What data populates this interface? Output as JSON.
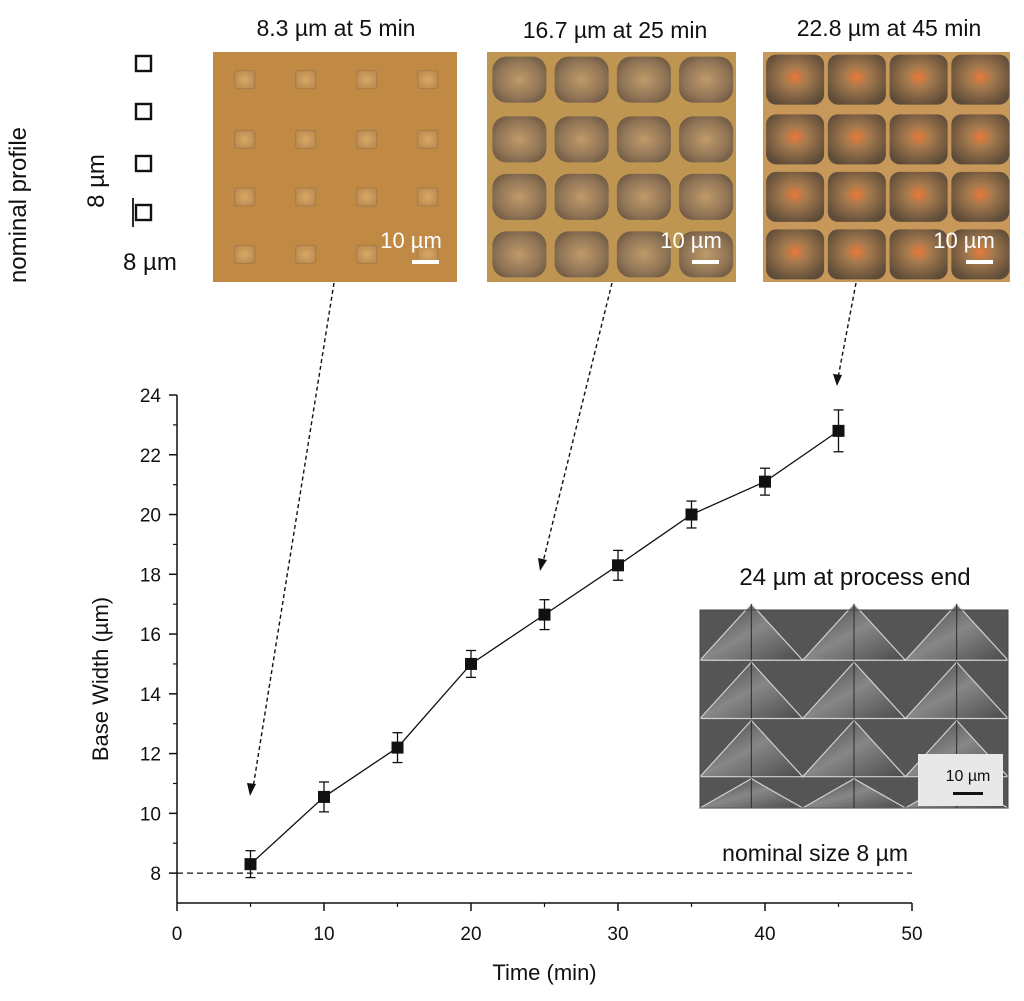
{
  "chart_data": {
    "type": "line",
    "title": "",
    "xlabel": "Time (min)",
    "ylabel": "Base Width (µm)",
    "xlim": [
      0,
      50
    ],
    "ylim": [
      7,
      24
    ],
    "xticks": [
      0,
      10,
      20,
      30,
      40,
      50
    ],
    "yticks": [
      8,
      10,
      12,
      14,
      16,
      18,
      20,
      22,
      24
    ],
    "grid": false,
    "series": [
      {
        "name": "Base Width",
        "x": [
          5,
          10,
          15,
          20,
          25,
          30,
          35,
          40,
          45
        ],
        "y": [
          8.3,
          10.55,
          12.2,
          15.0,
          16.65,
          18.3,
          20.0,
          21.1,
          22.8
        ],
        "error": [
          0.45,
          0.5,
          0.5,
          0.45,
          0.5,
          0.5,
          0.45,
          0.45,
          0.7
        ],
        "marker": "square",
        "color": "#111111"
      }
    ],
    "reference_line": {
      "y": 8,
      "label": "nominal size 8 µm",
      "style": "dashed"
    },
    "annotations": {
      "nominal_profile": "nominal profile",
      "dim_vertical": "8 µm",
      "dim_horizontal": "8 µm",
      "inset_labels": [
        "8.3 µm at 5 min",
        "16.7 µm at 25 min",
        "22.8 µm at 45 min"
      ],
      "scale_bar": "10 µm",
      "sem_label": "24 µm at process end",
      "sem_scale": "10 µm"
    },
    "colors": {
      "optical_bg": "#c08a45",
      "optical_dark": "#8a6a45",
      "sem_bg": "#6f6f6f"
    }
  }
}
